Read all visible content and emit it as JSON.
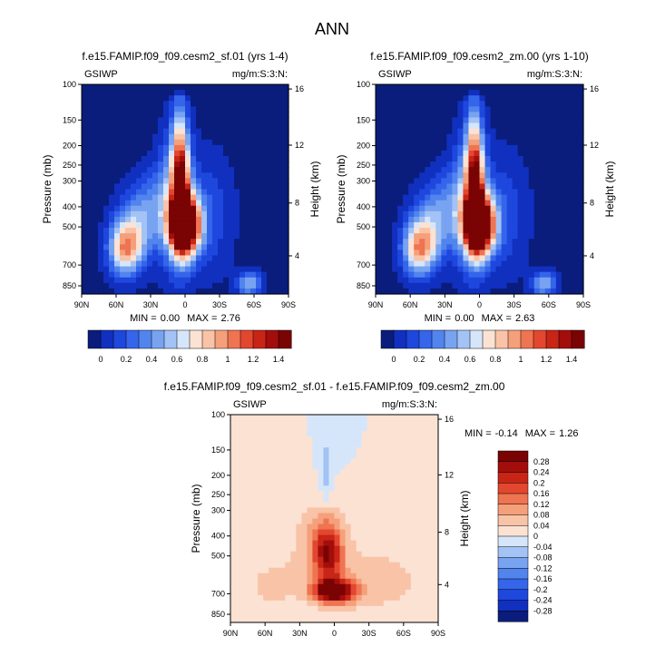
{
  "figure": {
    "title": "ANN"
  },
  "colors": {
    "abs_scale": [
      "#0a1d7c",
      "#1130c0",
      "#1e47de",
      "#3565ea",
      "#5284ee",
      "#78a3f1",
      "#a3c2f5",
      "#d6e6fa",
      "#fbe2d3",
      "#f9c3a7",
      "#f5a07a",
      "#ef7451",
      "#e3472f",
      "#c82516",
      "#a30e0c",
      "#7a0303"
    ],
    "diff_scale": [
      "#0a1d7c",
      "#1130c0",
      "#1e47de",
      "#3565ea",
      "#5284ee",
      "#78a3f1",
      "#a3c2f5",
      "#d6e6fa",
      "#fbe2d3",
      "#f9c3a7",
      "#f5a07a",
      "#ef7451",
      "#e3472f",
      "#c82516",
      "#a30e0c",
      "#7a0303"
    ]
  },
  "chart_data": [
    {
      "type": "heatmap",
      "title": "f.e15.FAMIP.f09_f09.cesm2_sf.01 (yrs 1-4)",
      "left_label": "GSIWP",
      "right_label": "mg/m:S:3:N:",
      "ylabel": "Pressure (mb)",
      "y2label": "Height (km)",
      "x_ticks": [
        "90N",
        "60N",
        "30N",
        "0",
        "30S",
        "60S",
        "90S"
      ],
      "y_ticks": [
        "100",
        "150",
        "200",
        "250",
        "300",
        "400",
        "500",
        "700",
        "850"
      ],
      "y2_ticks": [
        "16",
        "12",
        "8",
        "4"
      ],
      "min_label": "MIN =",
      "min_value": "0.00",
      "max_label": "MAX =",
      "max_value": "2.76",
      "colorbar_labels": [
        "0",
        "0.2",
        "0.4",
        "0.6",
        "0.8",
        "1",
        "1.2",
        "1.4"
      ],
      "max": 2.76
    },
    {
      "type": "heatmap",
      "title": "f.e15.FAMIP.f09_f09.cesm2_zm.00 (yrs 1-10)",
      "left_label": "GSIWP",
      "right_label": "mg/m:S:3:N:",
      "ylabel": "Pressure (mb)",
      "y2label": "Height (km)",
      "x_ticks": [
        "90N",
        "60N",
        "30N",
        "0",
        "30S",
        "60S",
        "90S"
      ],
      "y_ticks": [
        "100",
        "150",
        "200",
        "250",
        "300",
        "400",
        "500",
        "700",
        "850"
      ],
      "y2_ticks": [
        "16",
        "12",
        "8",
        "4"
      ],
      "min_label": "MIN =",
      "min_value": "0.00",
      "max_label": "MAX =",
      "max_value": "2.63",
      "colorbar_labels": [
        "0",
        "0.2",
        "0.4",
        "0.6",
        "0.8",
        "1",
        "1.2",
        "1.4"
      ],
      "max": 2.63
    },
    {
      "type": "heatmap",
      "title": "f.e15.FAMIP.f09_f09.cesm2_sf.01 - f.e15.FAMIP.f09_f09.cesm2_zm.00",
      "left_label": "GSIWP",
      "right_label": "mg/m:S:3:N:",
      "ylabel": "Pressure (mb)",
      "y2label": "Height (km)",
      "x_ticks": [
        "90N",
        "60N",
        "30N",
        "0",
        "30S",
        "60S",
        "90S"
      ],
      "y_ticks": [
        "100",
        "150",
        "200",
        "250",
        "300",
        "400",
        "500",
        "700",
        "850"
      ],
      "y2_ticks": [
        "16",
        "12",
        "8",
        "4"
      ],
      "min_label": "MIN =",
      "min_value": "-0.14",
      "max_label": "MAX =",
      "max_value": "1.26",
      "colorbar_labels": [
        "0.28",
        "0.24",
        "0.2",
        "0.16",
        "0.12",
        "0.08",
        "0.04",
        "0",
        "-0.04",
        "-0.08",
        "-0.12",
        "-0.16",
        "-0.2",
        "-0.24",
        "-0.28"
      ],
      "max": 1.26
    }
  ]
}
